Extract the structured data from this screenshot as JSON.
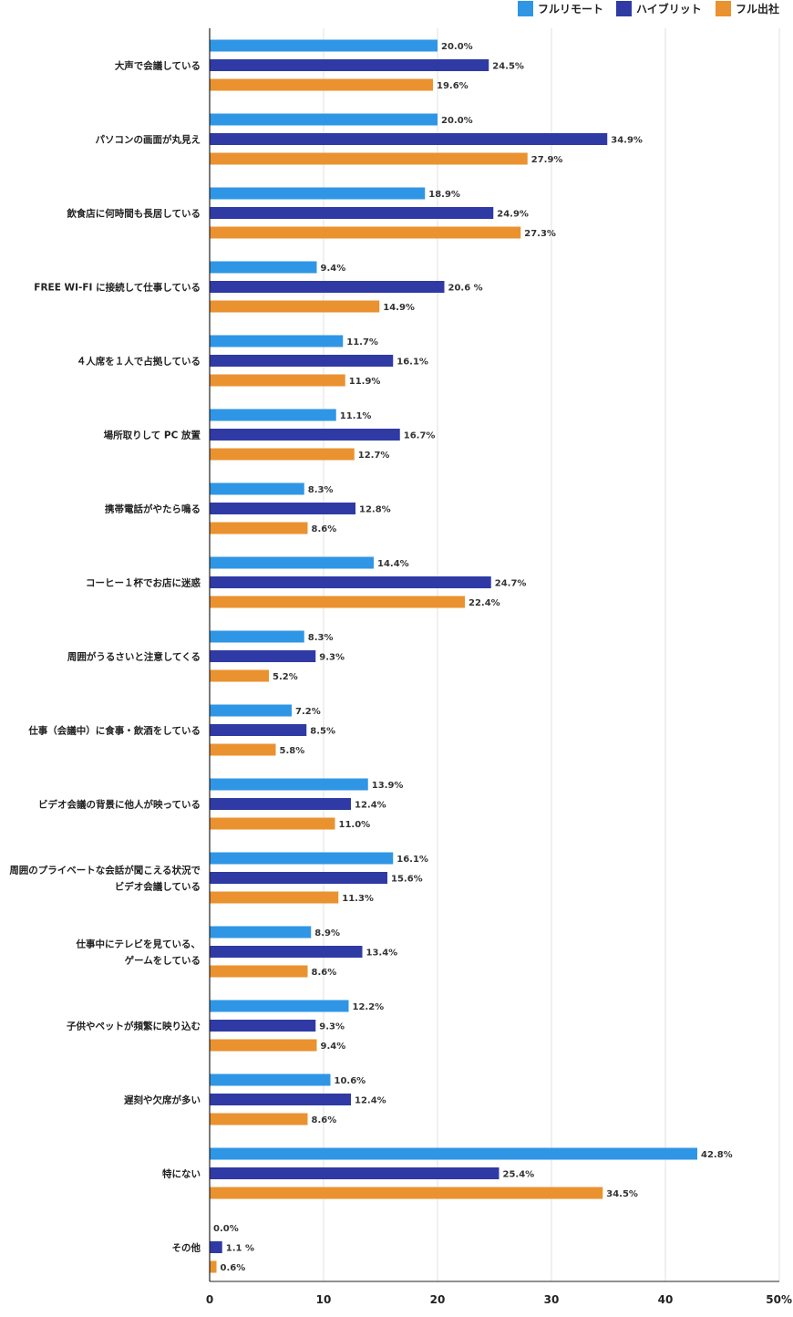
{
  "chart_data": {
    "type": "bar",
    "orientation": "horizontal",
    "categories": [
      [
        "大声で会議している"
      ],
      [
        "パソコンの画面が丸見え"
      ],
      [
        "飲食店に何時間も長居している"
      ],
      [
        "FREE WI-FI に接続して仕事している"
      ],
      [
        "４人席を１人で占拠している"
      ],
      [
        "場所取りして PC 放置"
      ],
      [
        "携帯電話がやたら鳴る"
      ],
      [
        "コーヒー１杯でお店に迷惑"
      ],
      [
        "周囲がうるさいと注意してくる"
      ],
      [
        "仕事（会議中）に食事・飲酒をしている"
      ],
      [
        "ビデオ会議の背景に他人が映っている"
      ],
      [
        "周囲のプライベートな会話が聞こえる状況で",
        "ビデオ会議している"
      ],
      [
        "仕事中にテレビを見ている、",
        "ゲームをしている"
      ],
      [
        "子供やペットが頻繁に映り込む"
      ],
      [
        "遅刻や欠席が多い"
      ],
      [
        "特にない"
      ],
      [
        "その他"
      ]
    ],
    "series": [
      {
        "name": "フルリモート",
        "color": "#2f96e6",
        "values": [
          20.0,
          20.0,
          18.9,
          9.4,
          11.7,
          11.1,
          8.3,
          14.4,
          8.3,
          7.2,
          13.9,
          16.1,
          8.9,
          12.2,
          10.6,
          42.8,
          0.0
        ],
        "labels": [
          "20.0%",
          "20.0%",
          "18.9%",
          "9.4%",
          "11.7%",
          "11.1%",
          "8.3%",
          "14.4%",
          "8.3%",
          "7.2%",
          "13.9%",
          "16.1%",
          "8.9%",
          "12.2%",
          "10.6%",
          "42.8%",
          "0.0%"
        ]
      },
      {
        "name": "ハイブリット",
        "color": "#2f3aa5",
        "values": [
          24.5,
          34.9,
          24.9,
          20.6,
          16.1,
          16.7,
          12.8,
          24.7,
          9.3,
          8.5,
          12.4,
          15.6,
          13.4,
          9.3,
          12.4,
          25.4,
          1.1
        ],
        "labels": [
          "24.5%",
          "34.9%",
          "24.9%",
          "20.6 %",
          "16.1%",
          "16.7%",
          "12.8%",
          "24.7%",
          "9.3%",
          "8.5%",
          "12.4%",
          "15.6%",
          "13.4%",
          "9.3%",
          "12.4%",
          "25.4%",
          "1.1 %"
        ]
      },
      {
        "name": "フル出社",
        "color": "#ea922f",
        "values": [
          19.6,
          27.9,
          27.3,
          14.9,
          11.9,
          12.7,
          8.6,
          22.4,
          5.2,
          5.8,
          11.0,
          11.3,
          8.6,
          9.4,
          8.6,
          34.5,
          0.6
        ],
        "labels": [
          "19.6%",
          "27.9%",
          "27.3%",
          "14.9%",
          "11.9%",
          "12.7%",
          "8.6%",
          "22.4%",
          "5.2%",
          "5.8%",
          "11.0%",
          "11.3%",
          "8.6%",
          "9.4%",
          "8.6%",
          "34.5%",
          "0.6%"
        ]
      }
    ],
    "xlim": [
      0,
      50
    ],
    "x_ticks": [
      "0",
      "10",
      "20",
      "30",
      "40",
      "50%"
    ],
    "x_tick_values": [
      0,
      10,
      20,
      30,
      40,
      50
    ],
    "grid": true,
    "legend_position": "top-right"
  }
}
